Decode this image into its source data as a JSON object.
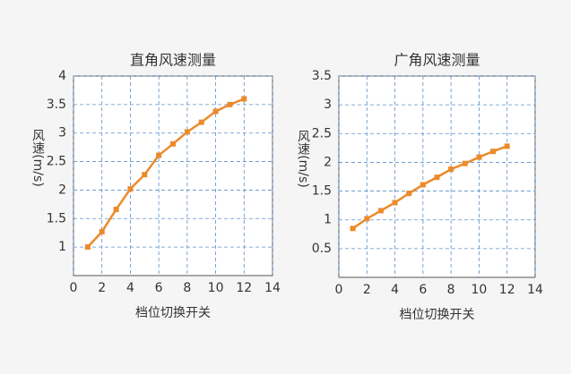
{
  "chart_data": [
    {
      "type": "line",
      "title": "直角风速测量",
      "xlabel": "档位切换开关",
      "ylabel": "风速(m/s)",
      "x": [
        1,
        2,
        3,
        4,
        5,
        6,
        7,
        8,
        9,
        10,
        11,
        12
      ],
      "values": [
        1.0,
        1.27,
        1.66,
        2.02,
        2.27,
        2.61,
        2.81,
        3.02,
        3.19,
        3.38,
        3.5,
        3.6
      ],
      "color": "#ec8a2a",
      "xlim": [
        0,
        14
      ],
      "xticks": [
        0,
        2,
        4,
        6,
        8,
        10,
        12,
        14
      ],
      "ylim": [
        0.5,
        4
      ],
      "yticks": [
        1,
        1.5,
        2,
        2.5,
        3,
        3.5,
        4
      ],
      "grid": true
    },
    {
      "type": "line",
      "title": "广角风速测量",
      "xlabel": "档位切换开关",
      "ylabel": "风速(m/s)",
      "x": [
        1,
        2,
        3,
        4,
        5,
        6,
        7,
        8,
        9,
        10,
        11,
        12
      ],
      "values": [
        0.85,
        1.02,
        1.16,
        1.3,
        1.46,
        1.61,
        1.74,
        1.88,
        1.98,
        2.09,
        2.19,
        2.28
      ],
      "color": "#ec8a2a",
      "xlim": [
        0,
        14
      ],
      "xticks": [
        0,
        2,
        4,
        6,
        8,
        10,
        12,
        14
      ],
      "ylim": [
        0,
        3.5
      ],
      "yticks": [
        0.5,
        1,
        1.5,
        2,
        2.5,
        3,
        3.5
      ],
      "grid": true
    }
  ]
}
